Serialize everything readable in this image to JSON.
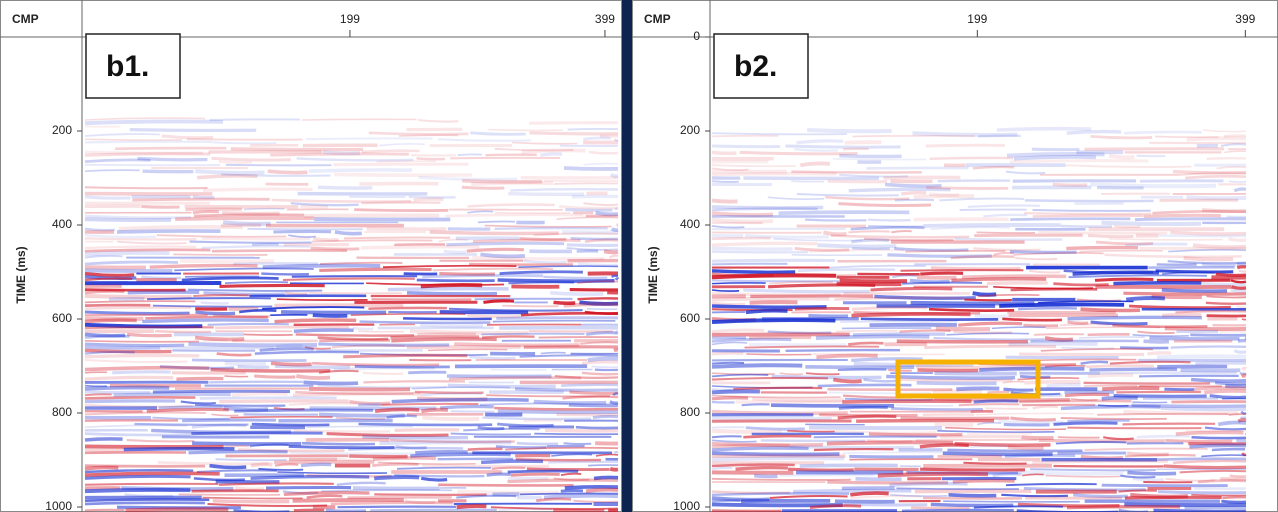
{
  "panels": [
    {
      "label": "b1.",
      "x_axis": {
        "title": "CMP",
        "ticks": [
          "199",
          "399"
        ]
      },
      "y_axis": {
        "title": "TIME (ms)",
        "ticks": [
          "200",
          "400",
          "600",
          "800",
          "1000"
        ]
      }
    },
    {
      "label": "b2.",
      "x_axis": {
        "title": "CMP",
        "ticks": [
          "199",
          "399"
        ]
      },
      "y_axis": {
        "title": "TIME (ms)",
        "ticks": [
          "0",
          "200",
          "400",
          "600",
          "800",
          "1000"
        ]
      }
    }
  ]
}
